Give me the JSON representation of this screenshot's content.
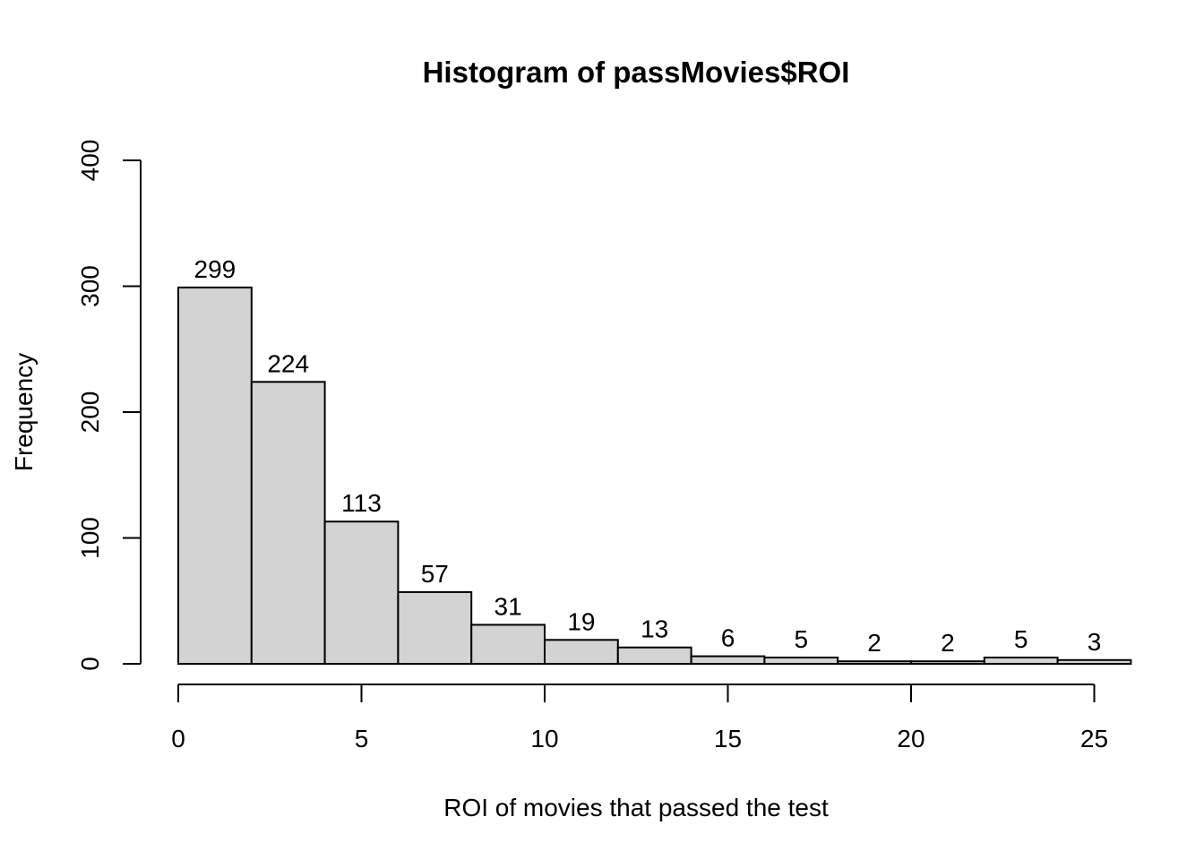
{
  "chart_data": {
    "type": "bar",
    "title": "Histogram of passMovies$ROI",
    "xlabel": "ROI of movies that passed the test",
    "ylabel": "Frequency",
    "bin_edges": [
      0,
      2,
      4,
      6,
      8,
      10,
      12,
      14,
      16,
      18,
      20,
      22,
      24,
      26
    ],
    "values": [
      299,
      224,
      113,
      57,
      31,
      19,
      13,
      6,
      5,
      2,
      2,
      5,
      3
    ],
    "xticks": [
      0,
      5,
      10,
      15,
      20,
      25
    ],
    "yticks": [
      0,
      100,
      200,
      300,
      400
    ],
    "xlim": [
      0,
      25
    ],
    "ylim": [
      0,
      400
    ],
    "bar_color": "#d3d3d3",
    "grid": false,
    "legend": "none"
  }
}
